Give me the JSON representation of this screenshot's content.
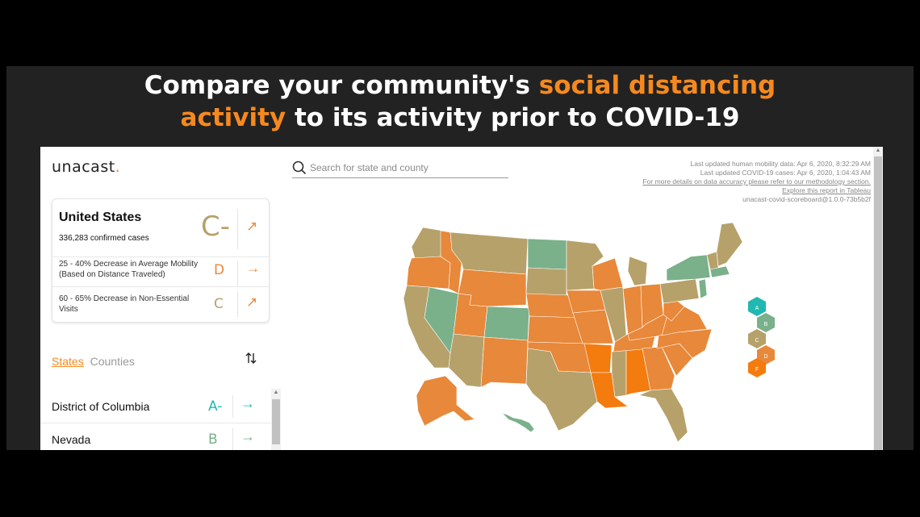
{
  "headline": {
    "part1": "Compare your community's ",
    "highlight1": "social distancing",
    "highlight2": "activity",
    "part2": " to its activity prior to COVID-19"
  },
  "logo": {
    "text": "unacast",
    "dot": "."
  },
  "summary": {
    "title": "United States",
    "cases": "336,283 confirmed cases",
    "grade": "C-",
    "metrics": [
      {
        "label": "25 - 40% Decrease in Average Mobility (Based on Distance Traveled)",
        "grade": "D",
        "grade_color": "#e8883a",
        "arrow": "→"
      },
      {
        "label": "60 - 65% Decrease in Non-Essential Visits",
        "grade": "C",
        "grade_color": "#b6a16a",
        "arrow": "↗"
      }
    ],
    "trend_arrow": "↗"
  },
  "tabs": {
    "states": "States",
    "counties": "Counties"
  },
  "state_list": [
    {
      "name": "District of Columbia",
      "grade": "A-",
      "color": "#20b8b0",
      "arrow": "→"
    },
    {
      "name": "Nevada",
      "grade": "B",
      "color": "#7ab08a",
      "arrow": "→"
    }
  ],
  "search": {
    "placeholder": "Search for state and county"
  },
  "meta": {
    "line1": "Last updated human mobility data: Apr 6, 2020, 8:32:29 AM",
    "line2": "Last updated COVID-19 cases: Apr 6, 2020, 1:04:43 AM",
    "line3": "For more details on data accuracy please refer to our methodology section.",
    "line4": "Explore this report in Tableau",
    "line5": "unacast-covid-scoreboard@1.0.0-73b5b2f"
  },
  "legend": [
    {
      "grade": "A",
      "color": "#20b8b0"
    },
    {
      "grade": "B",
      "color": "#7ab08a"
    },
    {
      "grade": "C",
      "color": "#b6a16a"
    },
    {
      "grade": "D",
      "color": "#e8883a"
    },
    {
      "grade": "F",
      "color": "#f47b0e"
    }
  ],
  "colors": {
    "accent": "#f5891f",
    "grade_a": "#20b8b0",
    "grade_b": "#7ab08a",
    "grade_c": "#b6a16a",
    "grade_d": "#e8883a",
    "grade_f": "#f47b0e"
  },
  "icons": {
    "search": "search-icon",
    "sort": "sort-icon"
  }
}
